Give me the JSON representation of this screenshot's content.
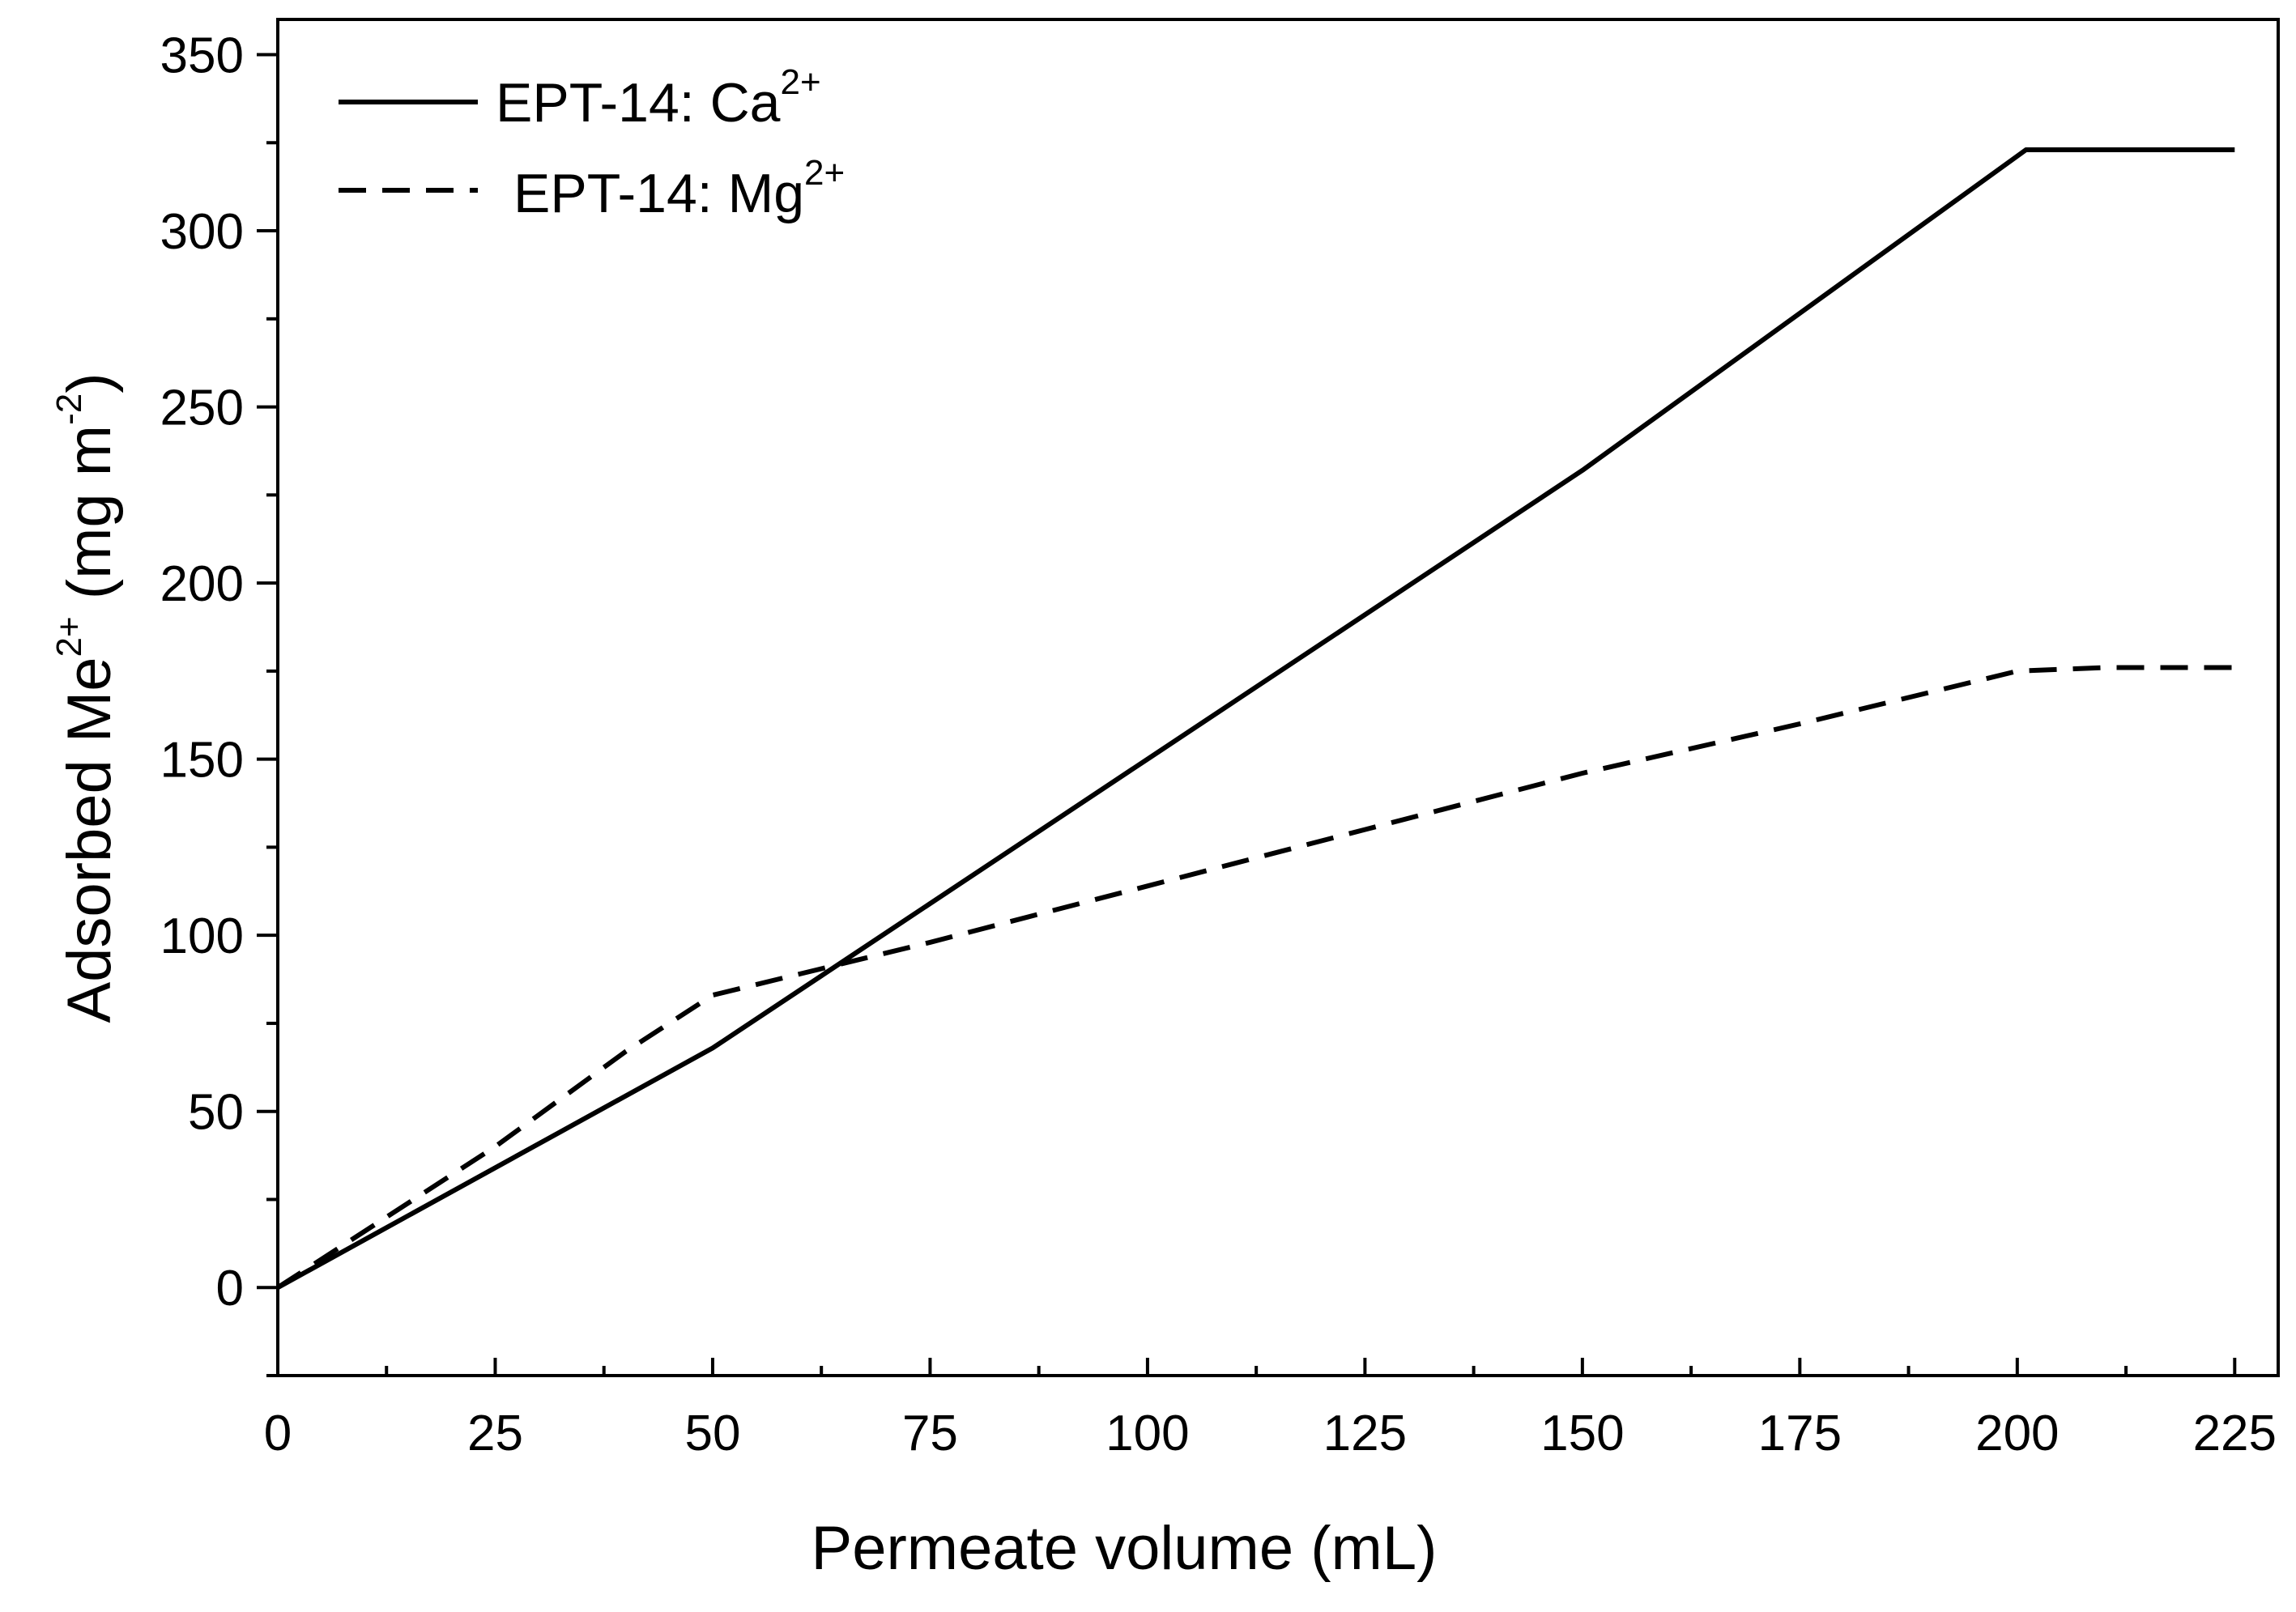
{
  "chart_data": {
    "type": "line",
    "title": "",
    "xlabel": "Permeate volume (mL)",
    "ylabel_main": "Adsorbed Me",
    "ylabel_sup": "2+",
    "ylabel_unit_open": "(mg m",
    "ylabel_unit_sup": "-2",
    "ylabel_unit_close": ")",
    "xlim": [
      0,
      230
    ],
    "ylim": [
      -25,
      360
    ],
    "xticks": [
      0,
      25,
      50,
      75,
      100,
      125,
      150,
      175,
      200,
      225
    ],
    "yticks": [
      0,
      50,
      100,
      150,
      200,
      250,
      300,
      350
    ],
    "grid": false,
    "legend_position": "top-left",
    "series": [
      {
        "name": "EPT-14: Ca2+",
        "label_main": "EPT-14: Ca",
        "label_sup": "2+",
        "style": "solid",
        "color": "#000000",
        "x": [
          0,
          50,
          100,
          150,
          201,
          225
        ],
        "y": [
          0,
          68,
          150,
          232,
          323,
          323
        ]
      },
      {
        "name": "EPT-14: Mg2+",
        "label_main": "EPT-14: Mg",
        "label_sup": "2+",
        "style": "dashed",
        "color": "#000000",
        "x": [
          0,
          10,
          25,
          40,
          50,
          60,
          75,
          100,
          125,
          150,
          175,
          200,
          210,
          225
        ],
        "y": [
          0,
          16,
          40,
          67,
          83,
          89,
          98,
          114,
          130,
          146,
          160,
          175,
          176,
          176
        ]
      }
    ]
  }
}
